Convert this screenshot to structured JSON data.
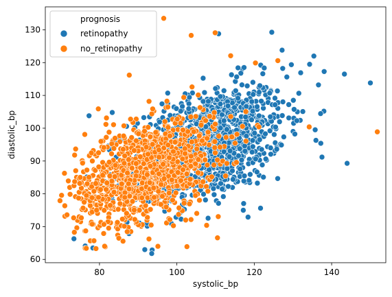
{
  "chart_data": {
    "type": "scatter",
    "title": "",
    "xlabel": "systolic_bp",
    "ylabel": "diastolic_bp",
    "xlim": [
      66,
      154
    ],
    "ylim": [
      59,
      137
    ],
    "xticks": [
      80,
      100,
      120,
      140
    ],
    "yticks": [
      60,
      70,
      80,
      90,
      100,
      110,
      120,
      130
    ],
    "grid": false,
    "legend": {
      "title": "prognosis",
      "placement": "top-left"
    },
    "series": [
      {
        "name": "retinopathy",
        "color": "#1f77b4",
        "cloud": {
          "x_mean": 108,
          "x_sd": 10,
          "y_mean": 95,
          "y_sd": 9,
          "corr": 0.42,
          "count": 1200,
          "x_range": [
            76,
            152
          ],
          "y_range": [
            62,
            130
          ]
        },
        "points": [
          [
            150,
            113.8
          ],
          [
            143.3,
            116.5
          ],
          [
            144,
            89.3
          ],
          [
            137.5,
            91.2
          ],
          [
            134.3,
            119.5
          ],
          [
            135.4,
            122
          ],
          [
            136.6,
            113.2
          ],
          [
            132,
            116.9
          ],
          [
            127.2,
            123.8
          ],
          [
            110.8,
            128.8
          ],
          [
            115.8,
            118.4
          ],
          [
            73.4,
            66.3
          ],
          [
            76.3,
            64.1
          ],
          [
            78.3,
            63.5
          ],
          [
            91.7,
            63
          ],
          [
            93.6,
            62.9
          ],
          [
            93.5,
            61.8
          ],
          [
            118.4,
            72.9
          ],
          [
            77.3,
            103.8
          ],
          [
            83.3,
            104.8
          ],
          [
            125.8,
            93.6
          ],
          [
            137.2,
            95.4
          ]
        ]
      },
      {
        "name": "no_retinopathy",
        "color": "#ff7f0e",
        "cloud": {
          "x_mean": 92,
          "x_sd": 9,
          "y_mean": 87,
          "y_sd": 8,
          "corr": 0.42,
          "count": 1100,
          "x_range": [
            69,
            153
          ],
          "y_range": [
            62,
            136
          ]
        },
        "points": [
          [
            96.6,
            133.5
          ],
          [
            151.8,
            98.9
          ],
          [
            103.7,
            128.3
          ],
          [
            109.9,
            129.1
          ],
          [
            113.9,
            122.1
          ],
          [
            126.1,
            120.6
          ],
          [
            87.7,
            116.2
          ],
          [
            120.3,
            119.9
          ],
          [
            69.8,
            77.9
          ],
          [
            71.6,
            73.6
          ],
          [
            76.6,
            63.4
          ],
          [
            79.1,
            63.3
          ],
          [
            102.6,
            63.9
          ],
          [
            95.1,
            64
          ],
          [
            110.5,
            66.6
          ],
          [
            79.7,
            105.9
          ],
          [
            76.2,
            98.1
          ],
          [
            134.2,
            100.4
          ],
          [
            121.2,
            100.4
          ],
          [
            107.7,
            70.4
          ]
        ]
      }
    ]
  }
}
